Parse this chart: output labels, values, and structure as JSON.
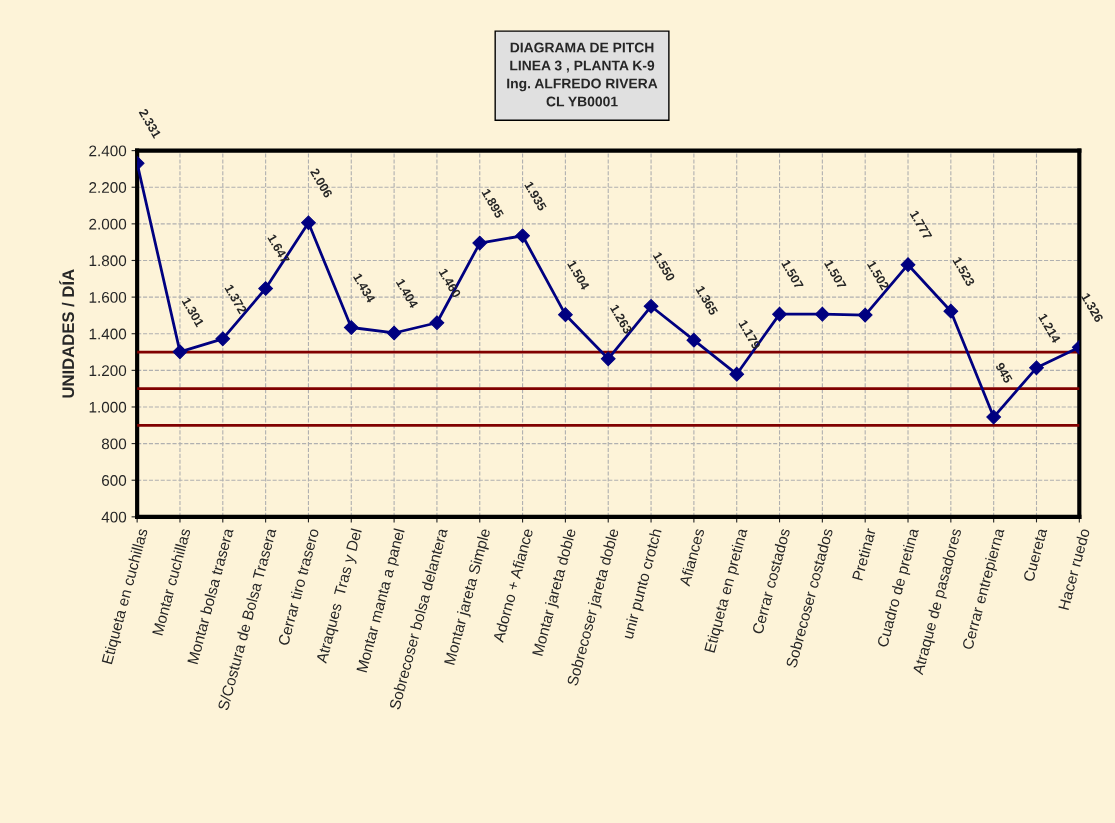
{
  "chart_data": {
    "type": "line",
    "title": "DIAGRAMA DE PITCH\nLINEA 3 , PLANTA K-9\nIng. ALFREDO RIVERA\nCL YB0001",
    "ylabel": "UNIDADES / DÍA",
    "categories": [
      "Etiqueta en cuchillas",
      "Montar cuchillas",
      "Montar bolsa trasera",
      "S/Costura de Bolsa Trasera",
      "Cerrar tiro trasero",
      "Atraques  Tras y Del",
      "Montar manta a panel",
      "Sobrecoser bolsa delantera",
      "Montar jareta Simple",
      "Adorno + Afiance",
      "Montar jareta doble",
      "Sobrecoser jareta doble",
      "unir punto crotch",
      "Afiances",
      "Etiqueta en pretina",
      "Cerrar costados",
      "Sobrecoser costados",
      "Pretinar",
      "Cuadro de pretina",
      "Atraque de pasadores",
      "Cerrar entrepierna",
      "Cuereta",
      "Hacer ruedo"
    ],
    "series": [
      {
        "color": "#000080",
        "values": [
          2331,
          1301,
          1372,
          1647,
          2006,
          1434,
          1404,
          1460,
          1895,
          1935,
          1504,
          1263,
          1550,
          1365,
          1179,
          1507,
          1507,
          1502,
          1777,
          1523,
          945,
          1214,
          1326
        ],
        "value_labels": [
          "2.331",
          "1.301",
          "1.372",
          "1.647",
          "2.006",
          "1.434",
          "1.404",
          "1.460",
          "1.895",
          "1.935",
          "1.504",
          "1.263",
          "1.550",
          "1.365",
          "1.179",
          "1.507",
          "1.507",
          "1.502",
          "1.777",
          "1.523",
          "945",
          "1.214",
          "1.326"
        ]
      }
    ],
    "ylim": [
      400,
      2400
    ],
    "yticks": [
      {
        "value": 400,
        "label": "400"
      },
      {
        "value": 600,
        "label": "600"
      },
      {
        "value": 800,
        "label": "800"
      },
      {
        "value": 1000,
        "label": "1.000"
      },
      {
        "value": 1200,
        "label": "1.200"
      },
      {
        "value": 1400,
        "label": "1.400"
      },
      {
        "value": 1600,
        "label": "1.600"
      },
      {
        "value": 1800,
        "label": "1.800"
      },
      {
        "value": 2000,
        "label": "2.000"
      },
      {
        "value": 2200,
        "label": "2.200"
      },
      {
        "value": 2400,
        "label": "2.400"
      }
    ],
    "ref_lines": [
      {
        "axis": "y",
        "value": 1300,
        "color": "#800000"
      },
      {
        "axis": "y",
        "value": 1100,
        "color": "#800000"
      },
      {
        "axis": "y",
        "value": 900,
        "color": "#800000"
      }
    ],
    "grid": true,
    "marker": "diamond",
    "line_style": "solid",
    "legend": false
  }
}
